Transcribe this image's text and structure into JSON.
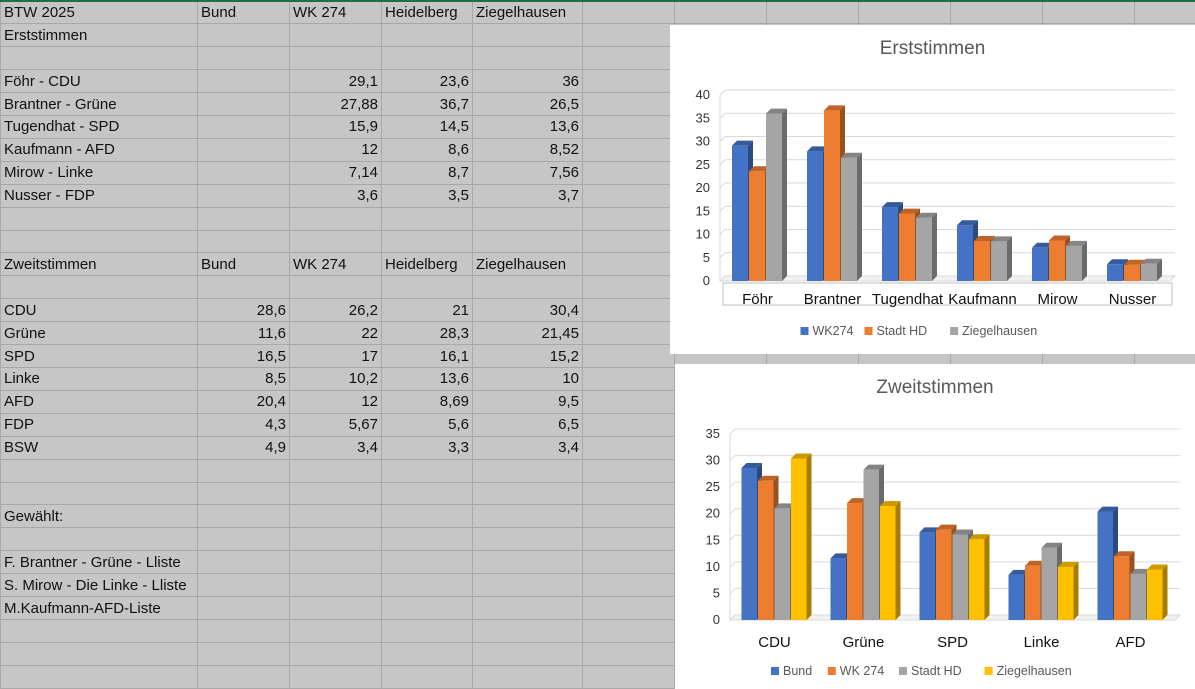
{
  "sheet": {
    "rows": [
      [
        "BTW 2025",
        "Bund",
        "WK 274",
        "Heidelberg",
        "Ziegelhausen"
      ],
      [
        "Erststimmen",
        "",
        "",
        "",
        ""
      ],
      [
        "",
        "",
        "",
        "",
        ""
      ],
      [
        "Föhr - CDU",
        "",
        "29,1",
        "23,6",
        "36"
      ],
      [
        "Brantner - Grüne",
        "",
        "27,88",
        "36,7",
        "26,5"
      ],
      [
        "Tugendhat - SPD",
        "",
        "15,9",
        "14,5",
        "13,6"
      ],
      [
        "Kaufmann - AFD",
        "",
        "12",
        "8,6",
        "8,52"
      ],
      [
        "Mirow - Linke",
        "",
        "7,14",
        "8,7",
        "7,56"
      ],
      [
        "Nusser - FDP",
        "",
        "3,6",
        "3,5",
        "3,7"
      ],
      [
        "",
        "",
        "",
        "",
        ""
      ],
      [
        "",
        "",
        "",
        "",
        ""
      ],
      [
        "Zweitstimmen",
        "Bund",
        "WK 274",
        "Heidelberg",
        "Ziegelhausen"
      ],
      [
        "",
        "",
        "",
        "",
        ""
      ],
      [
        "CDU",
        "28,6",
        "26,2",
        "21",
        "30,4"
      ],
      [
        "Grüne",
        "11,6",
        "22",
        "28,3",
        "21,45"
      ],
      [
        "SPD",
        "16,5",
        "17",
        "16,1",
        "15,2"
      ],
      [
        "Linke",
        "8,5",
        "10,2",
        "13,6",
        "10"
      ],
      [
        "AFD",
        "20,4",
        "12",
        "8,69",
        "9,5"
      ],
      [
        "FDP",
        "4,3",
        "5,67",
        "5,6",
        "6,5"
      ],
      [
        "BSW",
        "4,9",
        "3,4",
        "3,3",
        "3,4"
      ],
      [
        "",
        "",
        "",
        "",
        ""
      ],
      [
        "",
        "",
        "",
        "",
        ""
      ],
      [
        "Gewählt:",
        "",
        "",
        "",
        ""
      ],
      [
        "",
        "",
        "",
        "",
        ""
      ],
      [
        "F. Brantner - Grüne - Lliste",
        "",
        "",
        "",
        ""
      ],
      [
        "S. Mirow - Die Linke - Lliste",
        "",
        "",
        "",
        ""
      ],
      [
        "M.Kaufmann-AFD-Liste",
        "",
        "",
        "",
        ""
      ],
      [
        "",
        "",
        "",
        "",
        ""
      ],
      [
        "",
        "",
        "",
        "",
        ""
      ],
      [
        "",
        "",
        "",
        "",
        ""
      ]
    ]
  },
  "colors": {
    "blue": "#4472c4",
    "orange": "#ed7d31",
    "gray": "#a5a5a5",
    "yellow": "#ffc000",
    "sheet_bg": "#c6c6c6",
    "grid": "#a8a8a8"
  },
  "chart_data": [
    {
      "type": "bar",
      "title": "Erststimmen",
      "categories": [
        "Föhr",
        "Brantner",
        "Tugendhat",
        "Kaufmann",
        "Mirow",
        "Nusser"
      ],
      "series": [
        {
          "name": "WK274",
          "values": [
            29.1,
            27.88,
            15.9,
            12,
            7.14,
            3.6
          ],
          "color": "#4472c4"
        },
        {
          "name": "Stadt HD",
          "values": [
            23.6,
            36.7,
            14.5,
            8.6,
            8.7,
            3.5
          ],
          "color": "#ed7d31"
        },
        {
          "name": "Ziegelhausen",
          "values": [
            36,
            26.5,
            13.6,
            8.52,
            7.56,
            3.7
          ],
          "color": "#a5a5a5"
        }
      ],
      "ylim": [
        0,
        40
      ],
      "yticks": [
        0,
        5,
        10,
        15,
        20,
        25,
        30,
        35,
        40
      ],
      "grid": true,
      "legend": "bottom",
      "style": "3d-clustered-column"
    },
    {
      "type": "bar",
      "title": "Zweitstimmen",
      "categories": [
        "CDU",
        "Grüne",
        "SPD",
        "Linke",
        "AFD"
      ],
      "series": [
        {
          "name": "Bund",
          "values": [
            28.6,
            11.6,
            16.5,
            8.5,
            20.4
          ],
          "color": "#4472c4"
        },
        {
          "name": "WK 274",
          "values": [
            26.2,
            22,
            17,
            10.2,
            12
          ],
          "color": "#ed7d31"
        },
        {
          "name": "Stadt HD",
          "values": [
            21,
            28.3,
            16.1,
            13.6,
            8.69
          ],
          "color": "#a5a5a5"
        },
        {
          "name": "Ziegelhausen",
          "values": [
            30.4,
            21.45,
            15.2,
            10,
            9.5
          ],
          "color": "#ffc000"
        }
      ],
      "ylim": [
        0,
        35
      ],
      "yticks": [
        0,
        5,
        10,
        15,
        20,
        25,
        30,
        35
      ],
      "grid": true,
      "legend": "bottom",
      "style": "3d-clustered-column"
    }
  ]
}
